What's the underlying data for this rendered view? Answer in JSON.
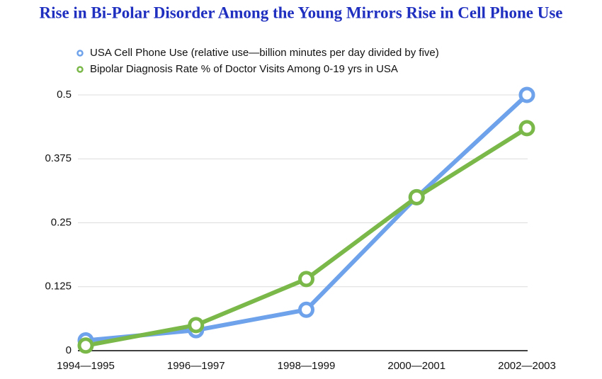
{
  "chart_data": {
    "type": "line",
    "title": "Rise in Bi-Polar Disorder Among the Young Mirrors Rise in Cell Phone Use",
    "categories": [
      "1994—1995",
      "1996—1997",
      "1998—1999",
      "2000—2001",
      "2002—2003"
    ],
    "series": [
      {
        "name": "USA Cell Phone Use (relative use—billion minutes per day divided by five)",
        "color": "#6ea2ea",
        "values": [
          0.02,
          0.04,
          0.08,
          0.3,
          0.5
        ]
      },
      {
        "name": "Bipolar Diagnosis Rate % of Doctor Visits Among 0-19 yrs in USA",
        "color": "#7bb84a",
        "values": [
          0.01,
          0.05,
          0.14,
          0.3,
          0.435
        ]
      }
    ],
    "ylim": [
      0,
      0.5
    ],
    "yticks": [
      0,
      0.125,
      0.25,
      0.375,
      0.5
    ],
    "grid": true
  }
}
